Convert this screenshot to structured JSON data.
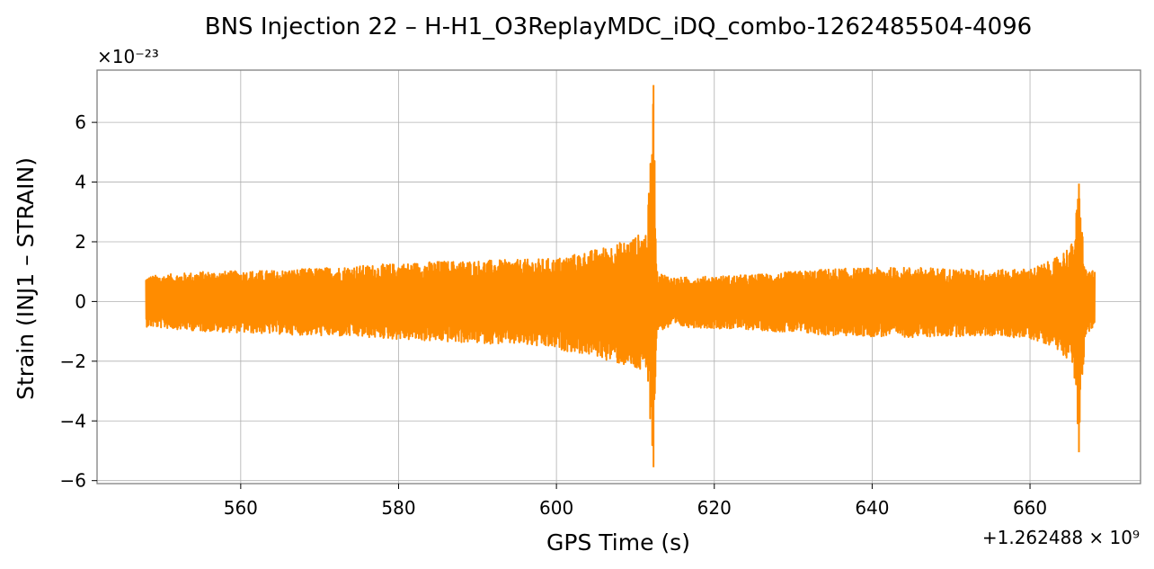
{
  "chart_data": {
    "type": "line",
    "title": "BNS Injection 22 – H-H1_O3ReplayMDC_iDQ_combo-1262485504-4096",
    "xlabel": "GPS Time (s)",
    "ylabel": "Strain (INJ1 – STRAIN)",
    "y_multiplier": "×10⁻²³",
    "x_offset": "+1.262488 × 10⁹",
    "xlim": [
      541.8,
      674
    ],
    "ylim": [
      -6.1,
      7.75
    ],
    "x_ticks": [
      560,
      580,
      600,
      620,
      640,
      660
    ],
    "x_tick_labels": [
      "560",
      "580",
      "600",
      "620",
      "640",
      "660"
    ],
    "y_ticks": [
      -6,
      -4,
      -2,
      0,
      2,
      4,
      6
    ],
    "y_tick_labels": [
      "−6",
      "−4",
      "−2",
      "0",
      "2",
      "4",
      "6"
    ],
    "grid": true,
    "color": "#ff8c00",
    "series": [
      {
        "x_range": [
          548,
          668.2
        ],
        "envelope": {
          "x": [
            548,
            555,
            565,
            575,
            585,
            595,
            600,
            605,
            609,
            611.5,
            612.3,
            612.7,
            615,
            625,
            635,
            645,
            655,
            660,
            663,
            665.5,
            666.2,
            667,
            668.2
          ],
          "upper": [
            0.85,
            1.0,
            1.05,
            1.2,
            1.35,
            1.4,
            1.45,
            1.75,
            2.05,
            2.4,
            7.25,
            1.0,
            0.8,
            0.9,
            1.1,
            1.15,
            1.05,
            1.1,
            1.4,
            2.0,
            3.95,
            1.1,
            1.0
          ],
          "lower": [
            -0.85,
            -1.0,
            -1.1,
            -1.2,
            -1.35,
            -1.45,
            -1.6,
            -1.85,
            -2.2,
            -2.5,
            -5.55,
            -1.0,
            -0.85,
            -0.95,
            -1.15,
            -1.2,
            -1.15,
            -1.25,
            -1.5,
            -2.1,
            -5.05,
            -1.1,
            -0.9
          ]
        }
      }
    ]
  }
}
